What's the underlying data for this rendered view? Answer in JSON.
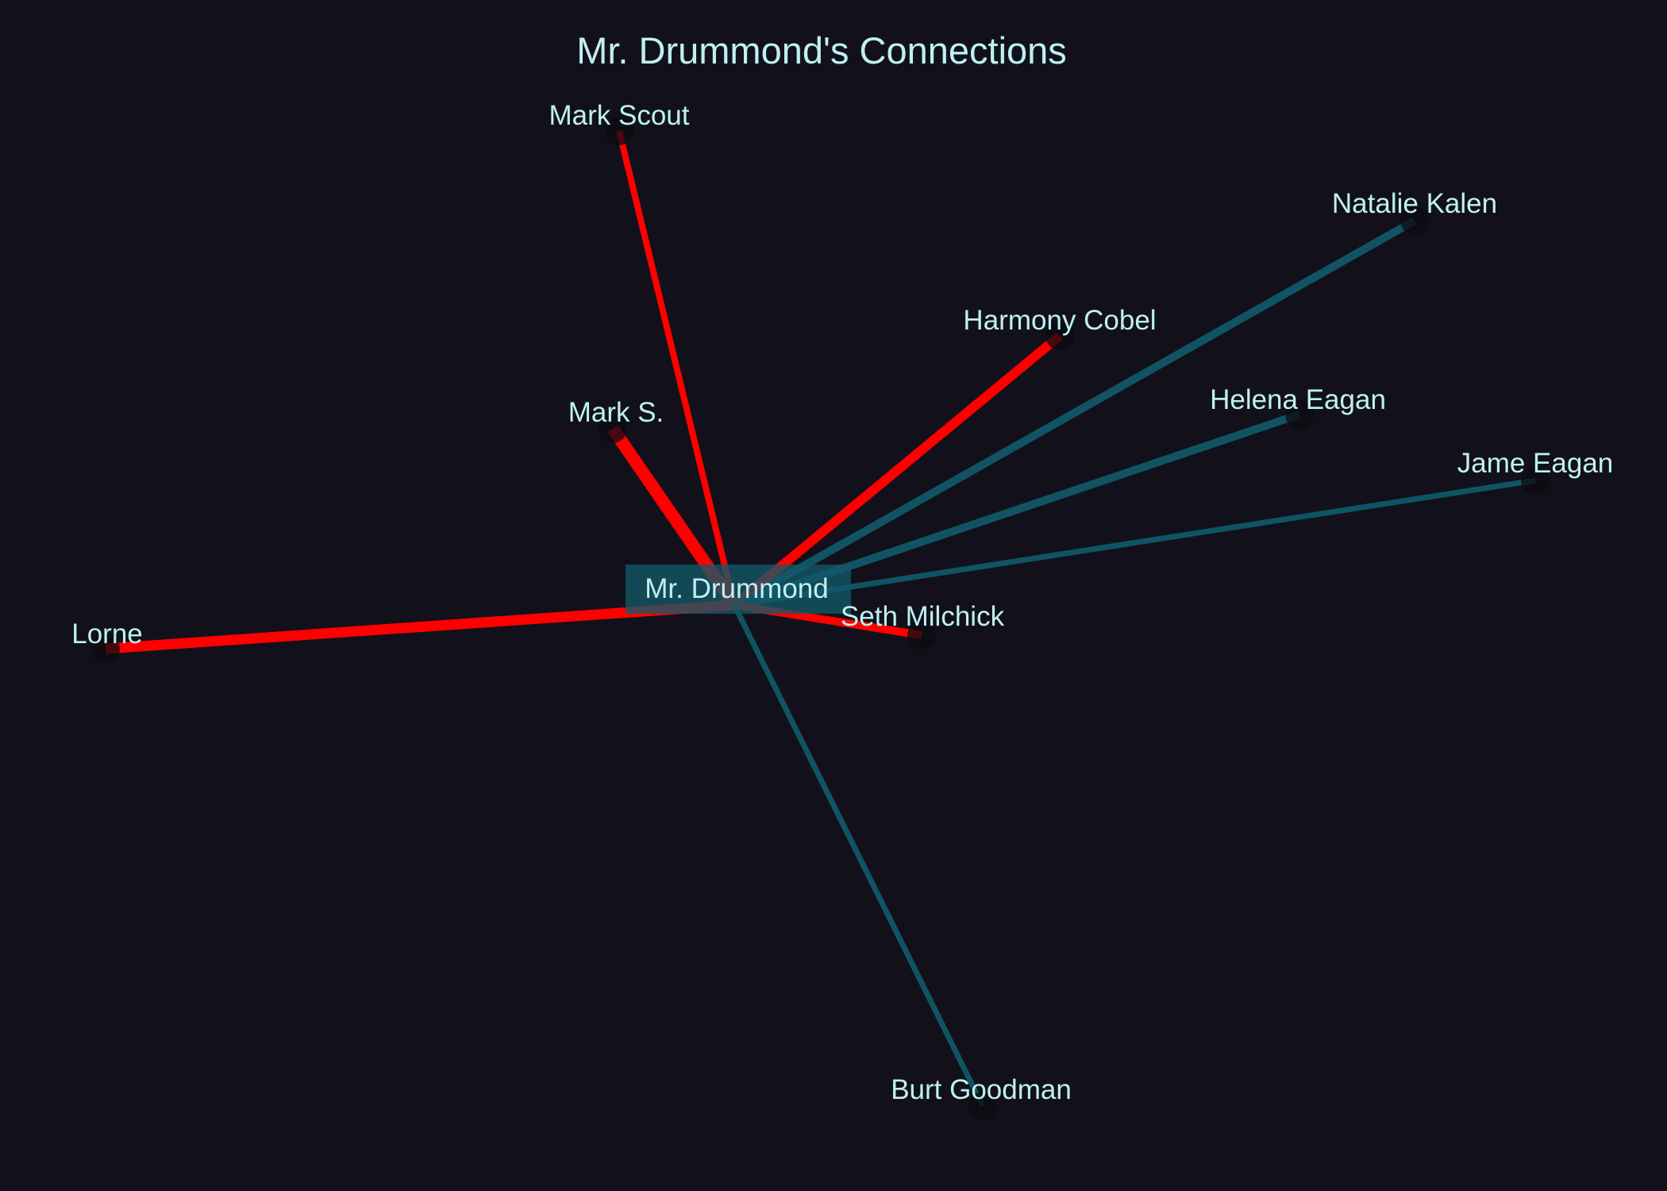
{
  "title": "Mr. Drummond's Connections",
  "center": {
    "label": "Mr. Drummond",
    "box_color": "#135868"
  },
  "colors": {
    "background": "#12111b",
    "text": "#bff0f2",
    "node": "#0c0b11",
    "red": "#ff0000",
    "teal": "#105463"
  },
  "connections": [
    {
      "name": "Mark Scout",
      "color": "red"
    },
    {
      "name": "Natalie Kalen",
      "color": "teal"
    },
    {
      "name": "Harmony Cobel",
      "color": "red"
    },
    {
      "name": "Mark S.",
      "color": "red"
    },
    {
      "name": "Helena Eagan",
      "color": "teal"
    },
    {
      "name": "Jame Eagan",
      "color": "teal"
    },
    {
      "name": "Lorne",
      "color": "red"
    },
    {
      "name": "Seth Milchick",
      "color": "red"
    },
    {
      "name": "Burt Goodman",
      "color": "teal"
    }
  ]
}
